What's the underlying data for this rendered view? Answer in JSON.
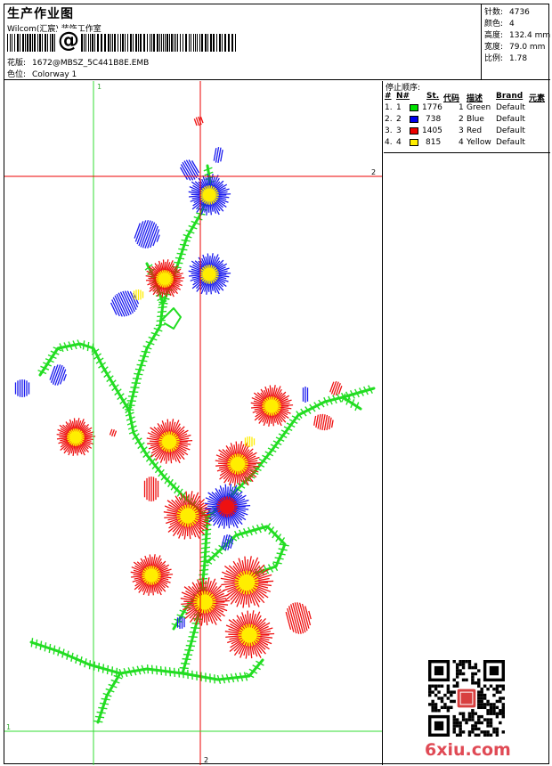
{
  "header": {
    "title": "生产作业图",
    "software": "Wilcom(汇宸) 装饰工作室",
    "barcode_symbol": "@",
    "pattern_label": "花版:",
    "pattern_value": "1672@MBSZ_5C441B8E.EMB",
    "colorway_label": "色位:",
    "colorway_value": "Colorway 1"
  },
  "stats": [
    {
      "label": "针数:",
      "value": "4736"
    },
    {
      "label": "颜色:",
      "value": "4"
    },
    {
      "label": "高度:",
      "value": "132.4 mm"
    },
    {
      "label": "宽度:",
      "value": "79.0 mm"
    },
    {
      "label": "比例:",
      "value": "1.78"
    }
  ],
  "guides": {
    "v1": "1",
    "v2": "2",
    "h1": "1",
    "h2": "2"
  },
  "stop_sequence": {
    "title": "停止顺序:",
    "headers": {
      "num": "#",
      "needle": "N#",
      "stitches": "St.",
      "code": "代码",
      "desc": "描述",
      "brand": "Brand",
      "element": "元素"
    },
    "rows": [
      {
        "num": "1.",
        "needle": "1",
        "color": "#00e000",
        "stitches": "1776",
        "code": "1",
        "desc": "Green",
        "brand": "Default"
      },
      {
        "num": "2.",
        "needle": "2",
        "color": "#0000ee",
        "stitches": "738",
        "code": "2",
        "desc": "Blue",
        "brand": "Default"
      },
      {
        "num": "3.",
        "needle": "3",
        "color": "#ee0000",
        "stitches": "1405",
        "code": "3",
        "desc": "Red",
        "brand": "Default"
      },
      {
        "num": "4.",
        "needle": "4",
        "color": "#ffee00",
        "stitches": "815",
        "code": "4",
        "desc": "Yellow",
        "brand": "Default"
      }
    ]
  },
  "watermark": "6xiu.com",
  "colors": {
    "green": "#22dd22",
    "blue": "#1a1aee",
    "red": "#ee1111",
    "yellow": "#ffee00",
    "guide_green": "#33dd33",
    "guide_red": "#ee0000"
  }
}
